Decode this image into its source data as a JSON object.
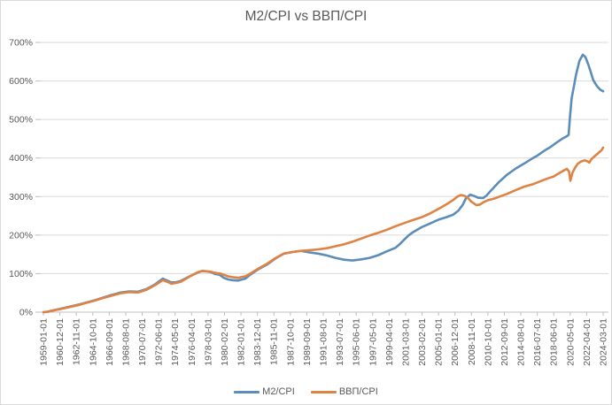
{
  "chart_data": {
    "type": "line",
    "title": "M2/CPI vs ВВП/CPI",
    "xlabel": "",
    "ylabel": "",
    "grid": "horizontal",
    "legend_position": "bottom",
    "ylim": [
      0,
      700
    ],
    "y_tick_labels": [
      "0%",
      "100%",
      "200%",
      "300%",
      "400%",
      "500%",
      "600%",
      "700%"
    ],
    "x_tick_labels": [
      "1959-01-01",
      "1960-12-01",
      "1962-11-01",
      "1964-10-01",
      "1966-09-01",
      "1968-08-01",
      "1970-07-01",
      "1972-06-01",
      "1974-05-01",
      "1976-04-01",
      "1978-03-01",
      "1980-02-01",
      "1982-01-01",
      "1983-12-01",
      "1985-11-01",
      "1987-10-01",
      "1989-09-01",
      "1991-08-01",
      "1993-07-01",
      "1995-06-01",
      "1997-05-01",
      "1999-04-01",
      "2001-03-01",
      "2003-02-01",
      "2005-01-01",
      "2006-12-01",
      "2008-11-01",
      "2010-10-01",
      "2012-09-01",
      "2014-08-01",
      "2016-07-01",
      "2018-06-01",
      "2020-05-01",
      "2022-04-01",
      "2024-03-01"
    ],
    "x_start_year": 1959,
    "x_total_months": 782,
    "series": [
      {
        "name": "M2/CPI",
        "color": "#5B8DB8",
        "points": [
          [
            1959.0,
            0
          ],
          [
            1959.5,
            1
          ],
          [
            1960.0,
            4
          ],
          [
            1961.0,
            9
          ],
          [
            1962.0,
            14
          ],
          [
            1963.0,
            19
          ],
          [
            1964.0,
            25
          ],
          [
            1965.0,
            31
          ],
          [
            1966.0,
            38
          ],
          [
            1967.0,
            45
          ],
          [
            1968.0,
            51
          ],
          [
            1969.0,
            54
          ],
          [
            1970.0,
            53
          ],
          [
            1971.0,
            60
          ],
          [
            1972.0,
            72
          ],
          [
            1972.9,
            87
          ],
          [
            1973.4,
            82
          ],
          [
            1973.9,
            77
          ],
          [
            1974.5,
            78
          ],
          [
            1975.0,
            81
          ],
          [
            1976.0,
            93
          ],
          [
            1977.0,
            103
          ],
          [
            1977.5,
            107
          ],
          [
            1978.0,
            106
          ],
          [
            1978.5,
            104
          ],
          [
            1979.0,
            99
          ],
          [
            1979.5,
            97
          ],
          [
            1980.0,
            89
          ],
          [
            1980.5,
            85
          ],
          [
            1981.0,
            83
          ],
          [
            1981.7,
            82
          ],
          [
            1982.0,
            84
          ],
          [
            1982.5,
            87
          ],
          [
            1983.0,
            96
          ],
          [
            1984.0,
            111
          ],
          [
            1985.0,
            123
          ],
          [
            1986.0,
            139
          ],
          [
            1987.0,
            152
          ],
          [
            1988.0,
            156
          ],
          [
            1989.0,
            159
          ],
          [
            1990.0,
            155
          ],
          [
            1991.0,
            152
          ],
          [
            1992.0,
            147
          ],
          [
            1993.0,
            141
          ],
          [
            1994.0,
            136
          ],
          [
            1995.0,
            134
          ],
          [
            1996.0,
            137
          ],
          [
            1997.0,
            141
          ],
          [
            1998.0,
            148
          ],
          [
            1999.0,
            158
          ],
          [
            2000.0,
            167
          ],
          [
            2000.5,
            177
          ],
          [
            2001.0,
            188
          ],
          [
            2001.5,
            199
          ],
          [
            2002.0,
            207
          ],
          [
            2003.0,
            220
          ],
          [
            2004.0,
            230
          ],
          [
            2005.0,
            240
          ],
          [
            2006.0,
            247
          ],
          [
            2006.7,
            253
          ],
          [
            2007.3,
            263
          ],
          [
            2007.8,
            278
          ],
          [
            2008.2,
            296
          ],
          [
            2008.7,
            305
          ],
          [
            2009.2,
            301
          ],
          [
            2009.6,
            297
          ],
          [
            2010.2,
            296
          ],
          [
            2010.6,
            303
          ],
          [
            2011.0,
            313
          ],
          [
            2012.0,
            337
          ],
          [
            2013.0,
            357
          ],
          [
            2014.0,
            373
          ],
          [
            2015.0,
            386
          ],
          [
            2016.0,
            400
          ],
          [
            2016.5,
            406
          ],
          [
            2017.0,
            414
          ],
          [
            2017.6,
            423
          ],
          [
            2018.0,
            428
          ],
          [
            2018.8,
            441
          ],
          [
            2019.4,
            450
          ],
          [
            2019.9,
            456
          ],
          [
            2020.15,
            460
          ],
          [
            2020.3,
            505
          ],
          [
            2020.5,
            555
          ],
          [
            2020.75,
            585
          ],
          [
            2021.0,
            615
          ],
          [
            2021.4,
            652
          ],
          [
            2021.8,
            668
          ],
          [
            2022.1,
            662
          ],
          [
            2022.4,
            645
          ],
          [
            2022.7,
            625
          ],
          [
            2023.0,
            603
          ],
          [
            2023.4,
            588
          ],
          [
            2023.8,
            578
          ],
          [
            2024.17,
            573
          ]
        ]
      },
      {
        "name": "ВВП/CPI",
        "color": "#DE8344",
        "points": [
          [
            1959.0,
            0
          ],
          [
            1959.5,
            1
          ],
          [
            1960.0,
            4
          ],
          [
            1961.0,
            8
          ],
          [
            1962.0,
            13
          ],
          [
            1963.0,
            18
          ],
          [
            1964.0,
            24
          ],
          [
            1965.0,
            30
          ],
          [
            1966.0,
            37
          ],
          [
            1967.0,
            43
          ],
          [
            1968.0,
            49
          ],
          [
            1969.0,
            52
          ],
          [
            1970.0,
            51
          ],
          [
            1971.0,
            58
          ],
          [
            1972.0,
            70
          ],
          [
            1972.9,
            83
          ],
          [
            1973.4,
            79
          ],
          [
            1973.9,
            74
          ],
          [
            1974.5,
            76
          ],
          [
            1975.0,
            79
          ],
          [
            1976.0,
            92
          ],
          [
            1977.0,
            104
          ],
          [
            1977.5,
            107
          ],
          [
            1978.0,
            106
          ],
          [
            1978.5,
            105
          ],
          [
            1979.0,
            102
          ],
          [
            1979.6,
            100
          ],
          [
            1980.0,
            97
          ],
          [
            1980.5,
            93
          ],
          [
            1981.0,
            91
          ],
          [
            1981.7,
            89
          ],
          [
            1982.0,
            91
          ],
          [
            1982.5,
            93
          ],
          [
            1983.0,
            99
          ],
          [
            1984.0,
            113
          ],
          [
            1985.0,
            125
          ],
          [
            1986.0,
            140
          ],
          [
            1987.0,
            152
          ],
          [
            1988.0,
            156
          ],
          [
            1989.0,
            159
          ],
          [
            1990.0,
            161
          ],
          [
            1991.0,
            163
          ],
          [
            1992.0,
            166
          ],
          [
            1993.0,
            171
          ],
          [
            1994.0,
            176
          ],
          [
            1995.0,
            183
          ],
          [
            1996.0,
            191
          ],
          [
            1997.0,
            199
          ],
          [
            1998.0,
            206
          ],
          [
            1999.0,
            214
          ],
          [
            2000.0,
            223
          ],
          [
            2001.0,
            231
          ],
          [
            2002.0,
            239
          ],
          [
            2003.0,
            246
          ],
          [
            2004.0,
            256
          ],
          [
            2005.0,
            268
          ],
          [
            2006.0,
            281
          ],
          [
            2006.7,
            291
          ],
          [
            2007.2,
            300
          ],
          [
            2007.6,
            304
          ],
          [
            2008.0,
            302
          ],
          [
            2008.4,
            297
          ],
          [
            2008.8,
            287
          ],
          [
            2009.4,
            278
          ],
          [
            2009.8,
            279
          ],
          [
            2010.3,
            286
          ],
          [
            2010.8,
            291
          ],
          [
            2011.5,
            295
          ],
          [
            2012.0,
            299
          ],
          [
            2013.0,
            307
          ],
          [
            2014.0,
            317
          ],
          [
            2015.0,
            326
          ],
          [
            2016.0,
            332
          ],
          [
            2017.0,
            341
          ],
          [
            2017.7,
            347
          ],
          [
            2018.4,
            352
          ],
          [
            2019.0,
            360
          ],
          [
            2019.6,
            368
          ],
          [
            2019.95,
            372
          ],
          [
            2020.2,
            365
          ],
          [
            2020.35,
            341
          ],
          [
            2020.6,
            362
          ],
          [
            2020.9,
            375
          ],
          [
            2021.2,
            385
          ],
          [
            2021.6,
            391
          ],
          [
            2022.0,
            394
          ],
          [
            2022.3,
            392
          ],
          [
            2022.55,
            388
          ],
          [
            2022.8,
            397
          ],
          [
            2023.2,
            405
          ],
          [
            2023.6,
            413
          ],
          [
            2024.0,
            421
          ],
          [
            2024.17,
            427
          ]
        ]
      }
    ]
  },
  "colors": {
    "text": "#595959",
    "gridline": "#D9D9D9",
    "axis": "#BFBFBF",
    "background": "#FFFFFF"
  }
}
